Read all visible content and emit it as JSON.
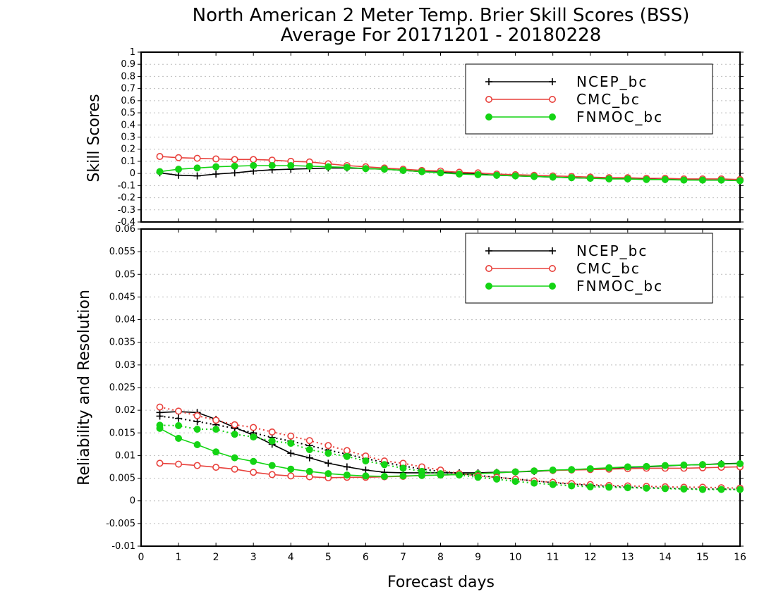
{
  "title": {
    "line1": "North American 2 Meter Temp. Brier Skill Scores (BSS)",
    "line2": "Average For 20171201 - 20180228"
  },
  "xlabel": "Forecast days",
  "colors": {
    "NCEP_bc": "#000000",
    "CMC_bc": "#e8413c",
    "FNMOC_bc": "#14d414"
  },
  "chart_data": [
    {
      "type": "line",
      "panel": "top",
      "ylabel": "Skill Scores",
      "xlim": [
        0,
        16
      ],
      "ylim": [
        -0.4,
        1
      ],
      "x_ticks": [
        "0",
        "1",
        "2",
        "3",
        "4",
        "5",
        "6",
        "7",
        "8",
        "9",
        "10",
        "11",
        "12",
        "13",
        "14",
        "15",
        "16"
      ],
      "y_ticks": [
        "-0.4",
        "-0.3",
        "-0.2",
        "-0.1",
        "0",
        "0.1",
        "0.2",
        "0.3",
        "0.4",
        "0.5",
        "0.6",
        "0.7",
        "0.8",
        "0.9",
        "1"
      ],
      "grid": true,
      "legend": "top-right",
      "x": [
        0.5,
        1,
        1.5,
        2,
        2.5,
        3,
        3.5,
        4,
        4.5,
        5,
        5.5,
        6,
        6.5,
        7,
        7.5,
        8,
        8.5,
        9,
        9.5,
        10,
        10.5,
        11,
        11.5,
        12,
        12.5,
        13,
        13.5,
        14,
        14.5,
        15,
        15.5,
        16
      ],
      "series": [
        {
          "name": "NCEP_bc",
          "marker": "plus",
          "style": "solid",
          "values": [
            0.005,
            -0.015,
            -0.02,
            -0.005,
            0.005,
            0.02,
            0.03,
            0.035,
            0.04,
            0.045,
            0.045,
            0.04,
            0.035,
            0.025,
            0.015,
            0.01,
            0.0,
            -0.005,
            -0.015,
            -0.02,
            -0.025,
            -0.03,
            -0.035,
            -0.04,
            -0.04,
            -0.045,
            -0.045,
            -0.05,
            -0.05,
            -0.055,
            -0.055,
            -0.06
          ]
        },
        {
          "name": "CMC_bc",
          "marker": "open-circle",
          "style": "solid",
          "values": [
            0.14,
            0.13,
            0.125,
            0.12,
            0.115,
            0.115,
            0.11,
            0.1,
            0.095,
            0.08,
            0.065,
            0.055,
            0.045,
            0.035,
            0.025,
            0.02,
            0.01,
            0.005,
            -0.005,
            -0.01,
            -0.015,
            -0.02,
            -0.025,
            -0.03,
            -0.035,
            -0.035,
            -0.04,
            -0.04,
            -0.045,
            -0.045,
            -0.045,
            -0.05
          ]
        },
        {
          "name": "FNMOC_bc",
          "marker": "filled-circle",
          "style": "solid",
          "values": [
            0.015,
            0.035,
            0.045,
            0.055,
            0.06,
            0.065,
            0.065,
            0.065,
            0.06,
            0.055,
            0.05,
            0.04,
            0.035,
            0.025,
            0.015,
            0.005,
            -0.005,
            -0.01,
            -0.015,
            -0.02,
            -0.025,
            -0.03,
            -0.035,
            -0.04,
            -0.045,
            -0.045,
            -0.05,
            -0.05,
            -0.055,
            -0.055,
            -0.055,
            -0.06
          ]
        }
      ]
    },
    {
      "type": "line",
      "panel": "bottom",
      "ylabel": "Reliability and Resolution",
      "xlim": [
        0,
        16
      ],
      "ylim": [
        -0.01,
        0.06
      ],
      "x_ticks": [
        "0",
        "1",
        "2",
        "3",
        "4",
        "5",
        "6",
        "7",
        "8",
        "9",
        "10",
        "11",
        "12",
        "13",
        "14",
        "15",
        "16"
      ],
      "y_ticks": [
        "-0.01",
        "-0.005",
        "0",
        "0.005",
        "0.01",
        "0.015",
        "0.02",
        "0.025",
        "0.03",
        "0.035",
        "0.04",
        "0.045",
        "0.05",
        "0.055",
        "0.06"
      ],
      "grid": true,
      "legend": "top-right",
      "x": [
        0.5,
        1,
        1.5,
        2,
        2.5,
        3,
        3.5,
        4,
        4.5,
        5,
        5.5,
        6,
        6.5,
        7,
        7.5,
        8,
        8.5,
        9,
        9.5,
        10,
        10.5,
        11,
        11.5,
        12,
        12.5,
        13,
        13.5,
        14,
        14.5,
        15,
        15.5,
        16
      ],
      "series": [
        {
          "name": "NCEP_bc",
          "metric": "reliability",
          "marker": "plus",
          "style": "solid",
          "values": [
            0.0195,
            0.0197,
            0.0195,
            0.018,
            0.0162,
            0.0145,
            0.0125,
            0.0105,
            0.0095,
            0.0083,
            0.0075,
            0.0068,
            0.0063,
            0.0062,
            0.0062,
            0.0062,
            0.0062,
            0.0062,
            0.0063,
            0.0064,
            0.0065,
            0.0067,
            0.0069,
            0.007,
            0.0072,
            0.0074,
            0.0075,
            0.0077,
            0.0079,
            0.008,
            0.0082,
            0.0083
          ]
        },
        {
          "name": "CMC_bc",
          "metric": "reliability",
          "marker": "open-circle",
          "style": "solid",
          "values": [
            0.0083,
            0.0081,
            0.0078,
            0.0074,
            0.007,
            0.0063,
            0.0058,
            0.0055,
            0.0053,
            0.0051,
            0.0052,
            0.0052,
            0.0053,
            0.0054,
            0.0056,
            0.0057,
            0.0058,
            0.006,
            0.0062,
            0.0064,
            0.0066,
            0.0067,
            0.0068,
            0.0069,
            0.007,
            0.0071,
            0.0072,
            0.0072,
            0.0072,
            0.0073,
            0.0074,
            0.0075
          ]
        },
        {
          "name": "FNMOC_bc",
          "metric": "reliability",
          "marker": "filled-circle",
          "style": "solid",
          "values": [
            0.016,
            0.0138,
            0.0124,
            0.0108,
            0.0095,
            0.0087,
            0.0078,
            0.007,
            0.0065,
            0.006,
            0.0057,
            0.0055,
            0.0054,
            0.0055,
            0.0056,
            0.0057,
            0.0058,
            0.006,
            0.0062,
            0.0064,
            0.0066,
            0.0068,
            0.0069,
            0.0071,
            0.0073,
            0.0075,
            0.0076,
            0.0078,
            0.0079,
            0.008,
            0.0081,
            0.0082
          ]
        },
        {
          "name": "NCEP_bc",
          "metric": "resolution",
          "marker": "plus",
          "style": "dotted",
          "values": [
            0.0187,
            0.0182,
            0.0175,
            0.0168,
            0.016,
            0.015,
            0.014,
            0.0132,
            0.0122,
            0.0112,
            0.0103,
            0.0093,
            0.0085,
            0.0077,
            0.007,
            0.0065,
            0.006,
            0.0056,
            0.0052,
            0.0048,
            0.0044,
            0.004,
            0.0037,
            0.0034,
            0.0032,
            0.003,
            0.0029,
            0.0028,
            0.0027,
            0.0026,
            0.0026,
            0.0025
          ]
        },
        {
          "name": "CMC_bc",
          "metric": "resolution",
          "marker": "open-circle",
          "style": "dotted",
          "values": [
            0.0207,
            0.0198,
            0.0188,
            0.0178,
            0.0168,
            0.0162,
            0.0152,
            0.0143,
            0.0133,
            0.0122,
            0.0111,
            0.0099,
            0.0088,
            0.0083,
            0.0075,
            0.0068,
            0.006,
            0.0055,
            0.0052,
            0.0048,
            0.0044,
            0.0041,
            0.0038,
            0.0036,
            0.0034,
            0.0033,
            0.0032,
            0.0031,
            0.003,
            0.003,
            0.0029,
            0.0028
          ]
        },
        {
          "name": "FNMOC_bc",
          "metric": "resolution",
          "marker": "filled-circle",
          "style": "dotted",
          "values": [
            0.0167,
            0.0166,
            0.0158,
            0.0158,
            0.0147,
            0.0141,
            0.0132,
            0.0127,
            0.0113,
            0.0105,
            0.0098,
            0.0088,
            0.008,
            0.0072,
            0.0065,
            0.006,
            0.0057,
            0.0052,
            0.0048,
            0.0043,
            0.0039,
            0.0036,
            0.0033,
            0.0031,
            0.003,
            0.0029,
            0.0028,
            0.0027,
            0.0026,
            0.0025,
            0.0025,
            0.0025
          ]
        }
      ]
    }
  ]
}
